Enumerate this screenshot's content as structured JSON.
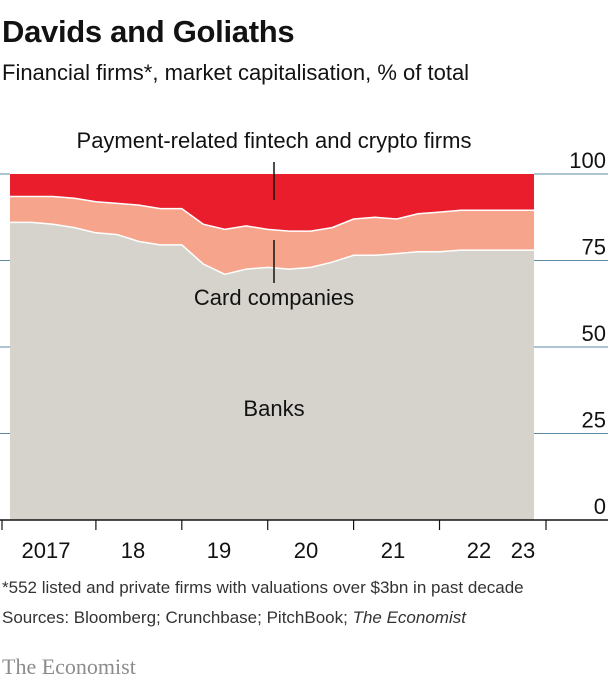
{
  "title": "Davids and Goliaths",
  "subtitle": "Financial firms*, market capitalisation, % of total",
  "footnote": "*552 listed and private firms with valuations over $3bn in past decade",
  "sources_prefix": "Sources: Bloomberg; Crunchbase; PitchBook; ",
  "sources_italic": "The Economist",
  "brand": "The Economist",
  "colors": {
    "banks": "#d5d3cc",
    "cards": "#f7a48c",
    "fintech": "#e91d2b",
    "grid": "#5b8aa3"
  },
  "chart_data": {
    "type": "area",
    "stacked": true,
    "ylim": [
      0,
      100
    ],
    "yticks": [
      0,
      25,
      50,
      75,
      100
    ],
    "x_tick_labels": [
      "2017",
      "18",
      "19",
      "20",
      "21",
      "22",
      "23"
    ],
    "x": [
      2017.0,
      2017.25,
      2017.5,
      2017.75,
      2018.0,
      2018.25,
      2018.5,
      2018.75,
      2019.0,
      2019.25,
      2019.5,
      2019.75,
      2020.0,
      2020.25,
      2020.5,
      2020.75,
      2021.0,
      2021.25,
      2021.5,
      2021.75,
      2022.0,
      2022.25,
      2022.5,
      2022.75,
      2023.0,
      2023.1
    ],
    "series": [
      {
        "name": "Banks",
        "values": [
          86,
          86,
          85.5,
          84.5,
          83,
          82.5,
          80.5,
          79.5,
          79.5,
          74,
          71,
          72.5,
          73,
          72.5,
          73,
          74.5,
          76.5,
          76.5,
          77,
          77.5,
          77.5,
          78,
          78,
          78,
          78,
          78
        ]
      },
      {
        "name": "Card companies",
        "values": [
          7.5,
          7.5,
          8,
          8.5,
          9,
          9,
          10.5,
          10.5,
          10.5,
          11.5,
          13,
          12.5,
          11,
          11,
          10.5,
          10,
          10.5,
          11,
          10,
          11,
          11.5,
          11.5,
          11.5,
          11.5,
          11.5,
          11.5
        ]
      },
      {
        "name": "Payment-related fintech and crypto firms",
        "values": [
          6.5,
          6.5,
          6.5,
          7,
          8,
          8.5,
          9,
          10,
          10,
          14.5,
          16,
          15,
          16,
          16.5,
          16.5,
          15.5,
          13,
          12.5,
          13,
          11.5,
          11,
          10.5,
          10.5,
          10.5,
          10.5,
          10.5
        ]
      }
    ]
  }
}
